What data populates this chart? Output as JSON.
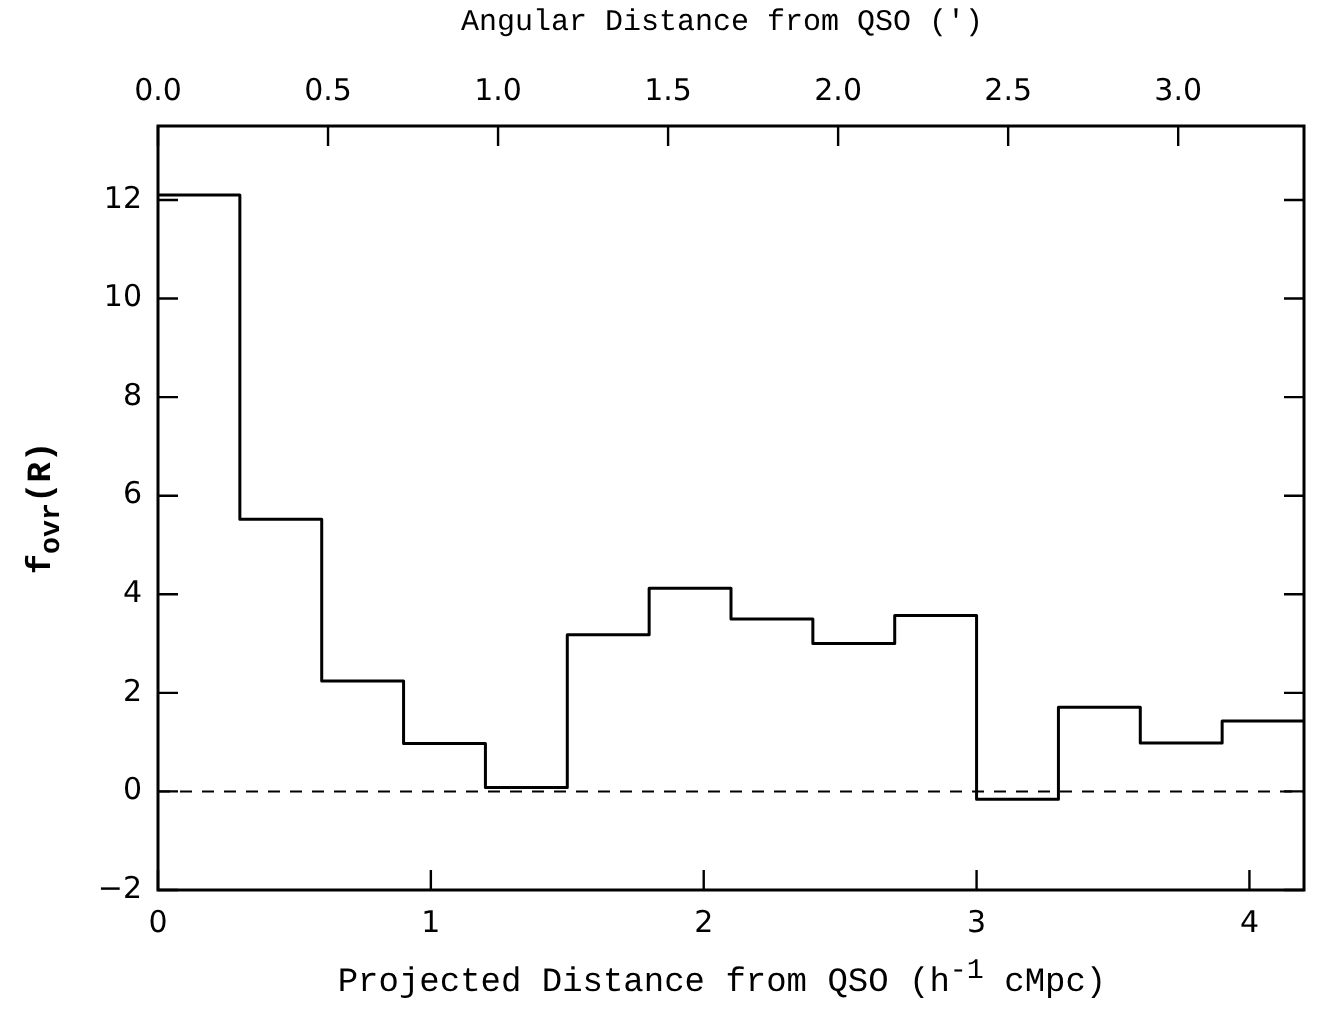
{
  "chart_data": {
    "type": "histogram",
    "xlabel": "Projected Distance from QSO (h$^{-1}$ cMpc)",
    "ylabel": "f$_{ovr}$(R)",
    "x2label": "Angular Distance from QSO (′)",
    "bins": [
      0,
      0.3,
      0.6,
      0.9,
      1.2,
      1.5,
      1.8,
      2.1,
      2.4,
      2.7,
      3.0,
      3.3,
      3.6,
      3.9,
      4.2
    ],
    "values": [
      12.1,
      5.52,
      2.24,
      0.97,
      0.08,
      3.18,
      4.12,
      3.5,
      3.0,
      3.57,
      -0.16,
      1.71,
      0.98,
      1.43
    ],
    "color": "#000000",
    "xlim": [
      0,
      4.2
    ],
    "xticks": [
      0,
      1,
      2,
      3,
      4
    ],
    "x2lim": [
      0,
      3.37
    ],
    "x2ticks": [
      {
        "value": 0,
        "label": "0.0"
      },
      0.5,
      {
        "value": 1,
        "label": "1.0"
      },
      1.5,
      {
        "value": 2,
        "label": "2.0"
      },
      2.5,
      {
        "value": 3,
        "label": "3.0"
      }
    ],
    "ylim": [
      -2,
      13.5
    ],
    "yticks": [
      -2,
      0,
      2,
      4,
      6,
      8,
      10,
      12
    ],
    "ref_lines": [
      {
        "axis": "y",
        "value": 0,
        "line_style": "dashed"
      }
    ],
    "grid": false,
    "legend": false
  }
}
